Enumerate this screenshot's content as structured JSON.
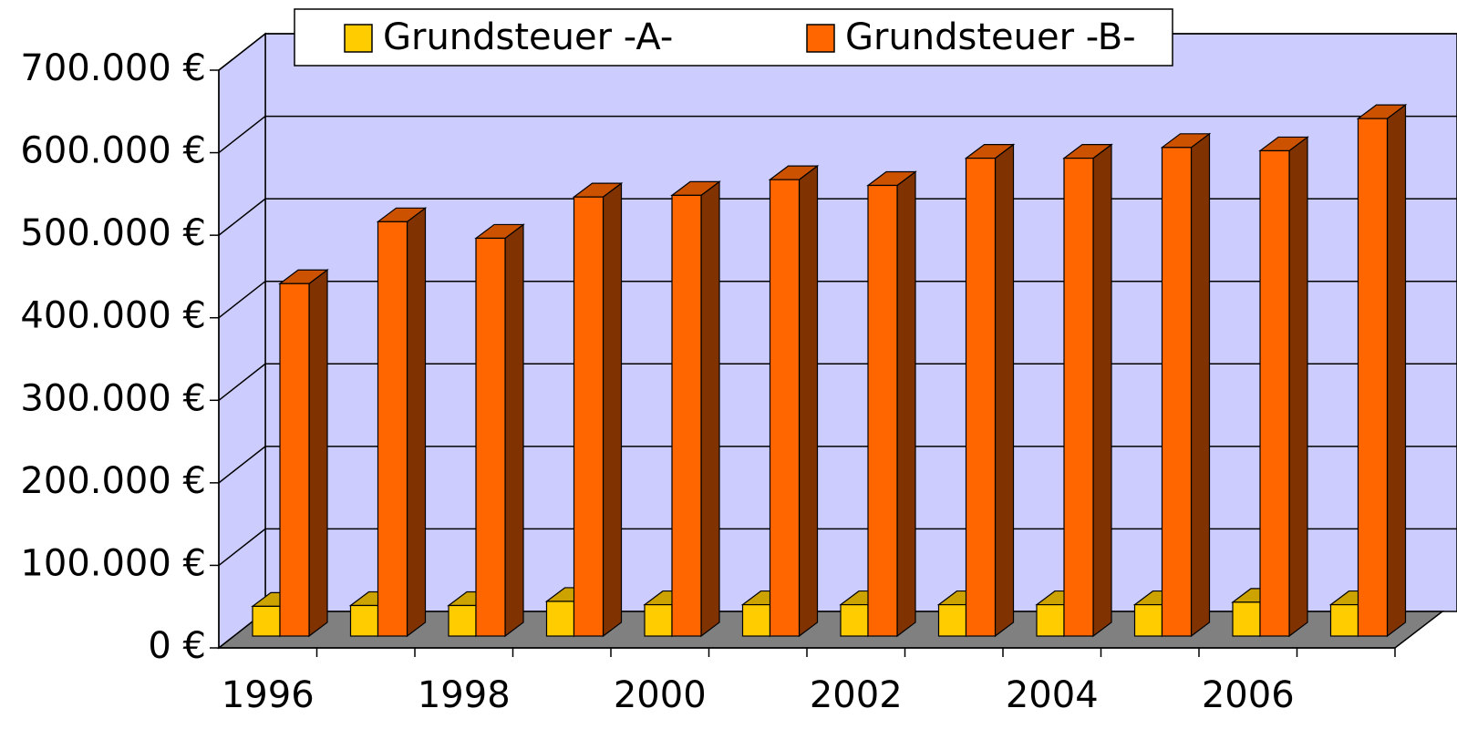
{
  "chart_data": {
    "type": "bar3d",
    "categories": [
      "1996",
      null,
      "1998",
      null,
      "2000",
      null,
      "2002",
      null,
      "2004",
      null,
      "2006",
      null
    ],
    "series": [
      {
        "name": "Grundsteuer -A-",
        "color": "#ffcc00",
        "values": [
          36000,
          37000,
          37000,
          42000,
          38000,
          38000,
          38000,
          38000,
          38000,
          38000,
          41000,
          38000
        ]
      },
      {
        "name": "Grundsteuer -B-",
        "color": "#ff6600",
        "values": [
          427000,
          502000,
          482000,
          532000,
          534000,
          553000,
          546000,
          579000,
          579000,
          592000,
          588000,
          627000
        ]
      }
    ],
    "ylim": [
      0,
      700000
    ],
    "yticks": [
      {
        "value": 0,
        "label": "0 €"
      },
      {
        "value": 100000,
        "label": "100.000 €"
      },
      {
        "value": 200000,
        "label": "200.000 €"
      },
      {
        "value": 300000,
        "label": "300.000 €"
      },
      {
        "value": 400000,
        "label": "400.000 €"
      },
      {
        "value": 500000,
        "label": "500.000 €"
      },
      {
        "value": 600000,
        "label": "600.000 €"
      },
      {
        "value": 700000,
        "label": "700.000 €"
      }
    ],
    "grid": true,
    "legend": "top"
  }
}
